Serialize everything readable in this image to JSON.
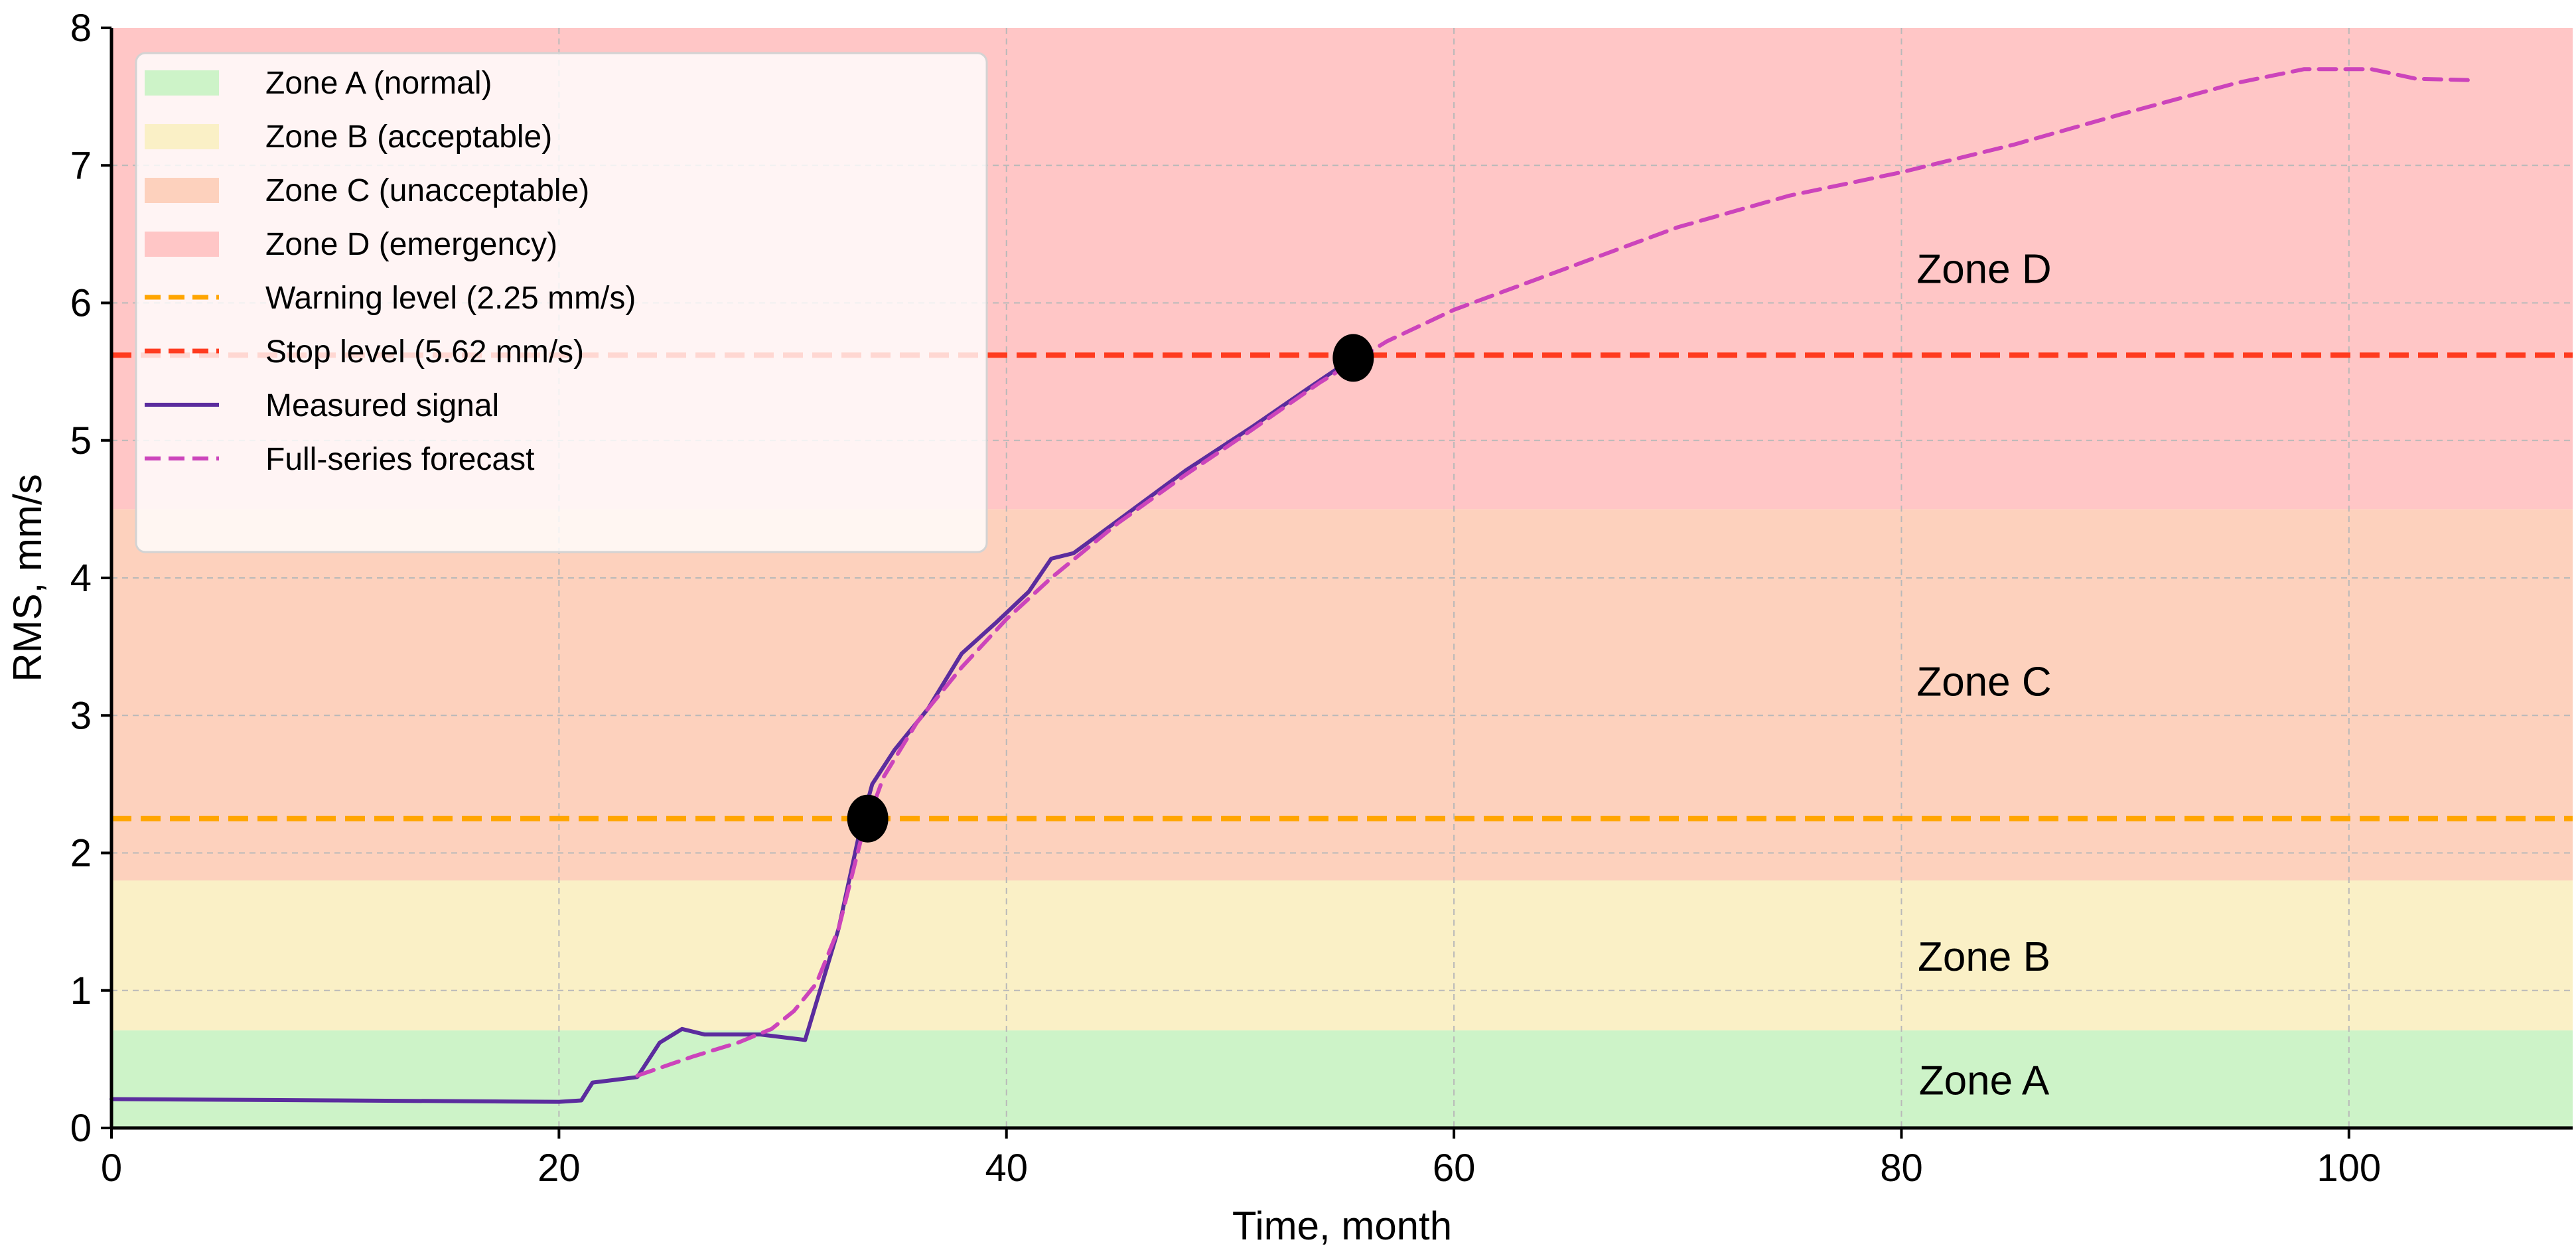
{
  "chart_data": {
    "type": "line",
    "xlabel": "Time, month",
    "ylabel": "RMS, mm/s",
    "xlim": [
      0,
      110
    ],
    "ylim": [
      0,
      8
    ],
    "x_ticks": [
      0,
      20,
      40,
      60,
      80,
      100
    ],
    "y_ticks": [
      0,
      1,
      2,
      3,
      4,
      5,
      6,
      7,
      8
    ],
    "grid": true,
    "legend_position": "top-left",
    "zones": [
      {
        "name": "Zone A (normal)",
        "label": "Zone A",
        "from": 0,
        "to": 0.71,
        "color": "#cdf3c8"
      },
      {
        "name": "Zone B (acceptable)",
        "label": "Zone B",
        "from": 0.71,
        "to": 1.8,
        "color": "#faf0c6"
      },
      {
        "name": "Zone C (unacceptable)",
        "label": "Zone C",
        "from": 1.8,
        "to": 4.5,
        "color": "#fdd1bd"
      },
      {
        "name": "Zone D (emergency)",
        "label": "Zone D",
        "from": 4.5,
        "to": 8,
        "color": "#ffc6c6"
      }
    ],
    "thresholds": [
      {
        "name": "Warning level (2.25 mm/s)",
        "value": 2.25,
        "color": "#ffa500"
      },
      {
        "name": "Stop level (5.62 mm/s)",
        "value": 5.62,
        "color": "#ff3b1f"
      }
    ],
    "series": [
      {
        "name": "Measured signal",
        "style": "solid",
        "color": "#5b2c9e",
        "points": [
          [
            0,
            0.21
          ],
          [
            10,
            0.2
          ],
          [
            20,
            0.19
          ],
          [
            21,
            0.2
          ],
          [
            21.5,
            0.33
          ],
          [
            22.5,
            0.35
          ],
          [
            23.5,
            0.37
          ],
          [
            24.5,
            0.62
          ],
          [
            25.5,
            0.72
          ],
          [
            26.5,
            0.68
          ],
          [
            29,
            0.68
          ],
          [
            31,
            0.64
          ],
          [
            32.5,
            1.45
          ],
          [
            33.5,
            2.2
          ],
          [
            34,
            2.5
          ],
          [
            35,
            2.75
          ],
          [
            36.5,
            3.05
          ],
          [
            38,
            3.45
          ],
          [
            39.5,
            3.67
          ],
          [
            41,
            3.9
          ],
          [
            42,
            4.14
          ],
          [
            43,
            4.18
          ],
          [
            45,
            4.42
          ],
          [
            48,
            4.78
          ],
          [
            51,
            5.1
          ],
          [
            53.5,
            5.38
          ],
          [
            55.5,
            5.6
          ]
        ]
      },
      {
        "name": "Full-series forecast",
        "style": "dashed",
        "color": "#cc44bb",
        "points": [
          [
            23.5,
            0.38
          ],
          [
            26,
            0.52
          ],
          [
            28,
            0.62
          ],
          [
            29.5,
            0.72
          ],
          [
            30.5,
            0.85
          ],
          [
            31.5,
            1.05
          ],
          [
            32.5,
            1.45
          ],
          [
            33.5,
            2.1
          ],
          [
            34.5,
            2.55
          ],
          [
            36,
            2.95
          ],
          [
            38,
            3.35
          ],
          [
            40,
            3.7
          ],
          [
            42,
            4.0
          ],
          [
            45,
            4.4
          ],
          [
            48,
            4.75
          ],
          [
            51,
            5.08
          ],
          [
            54,
            5.42
          ],
          [
            57,
            5.72
          ],
          [
            60,
            5.95
          ],
          [
            65,
            6.25
          ],
          [
            70,
            6.55
          ],
          [
            75,
            6.78
          ],
          [
            80,
            6.95
          ],
          [
            85,
            7.15
          ],
          [
            90,
            7.38
          ],
          [
            95,
            7.6
          ],
          [
            98,
            7.7
          ],
          [
            101,
            7.7
          ],
          [
            103,
            7.63
          ],
          [
            105.5,
            7.62
          ]
        ]
      }
    ],
    "markers": [
      {
        "x": 33.8,
        "y": 2.25,
        "color": "#000000"
      },
      {
        "x": 55.5,
        "y": 5.6,
        "color": "#000000"
      }
    ]
  }
}
